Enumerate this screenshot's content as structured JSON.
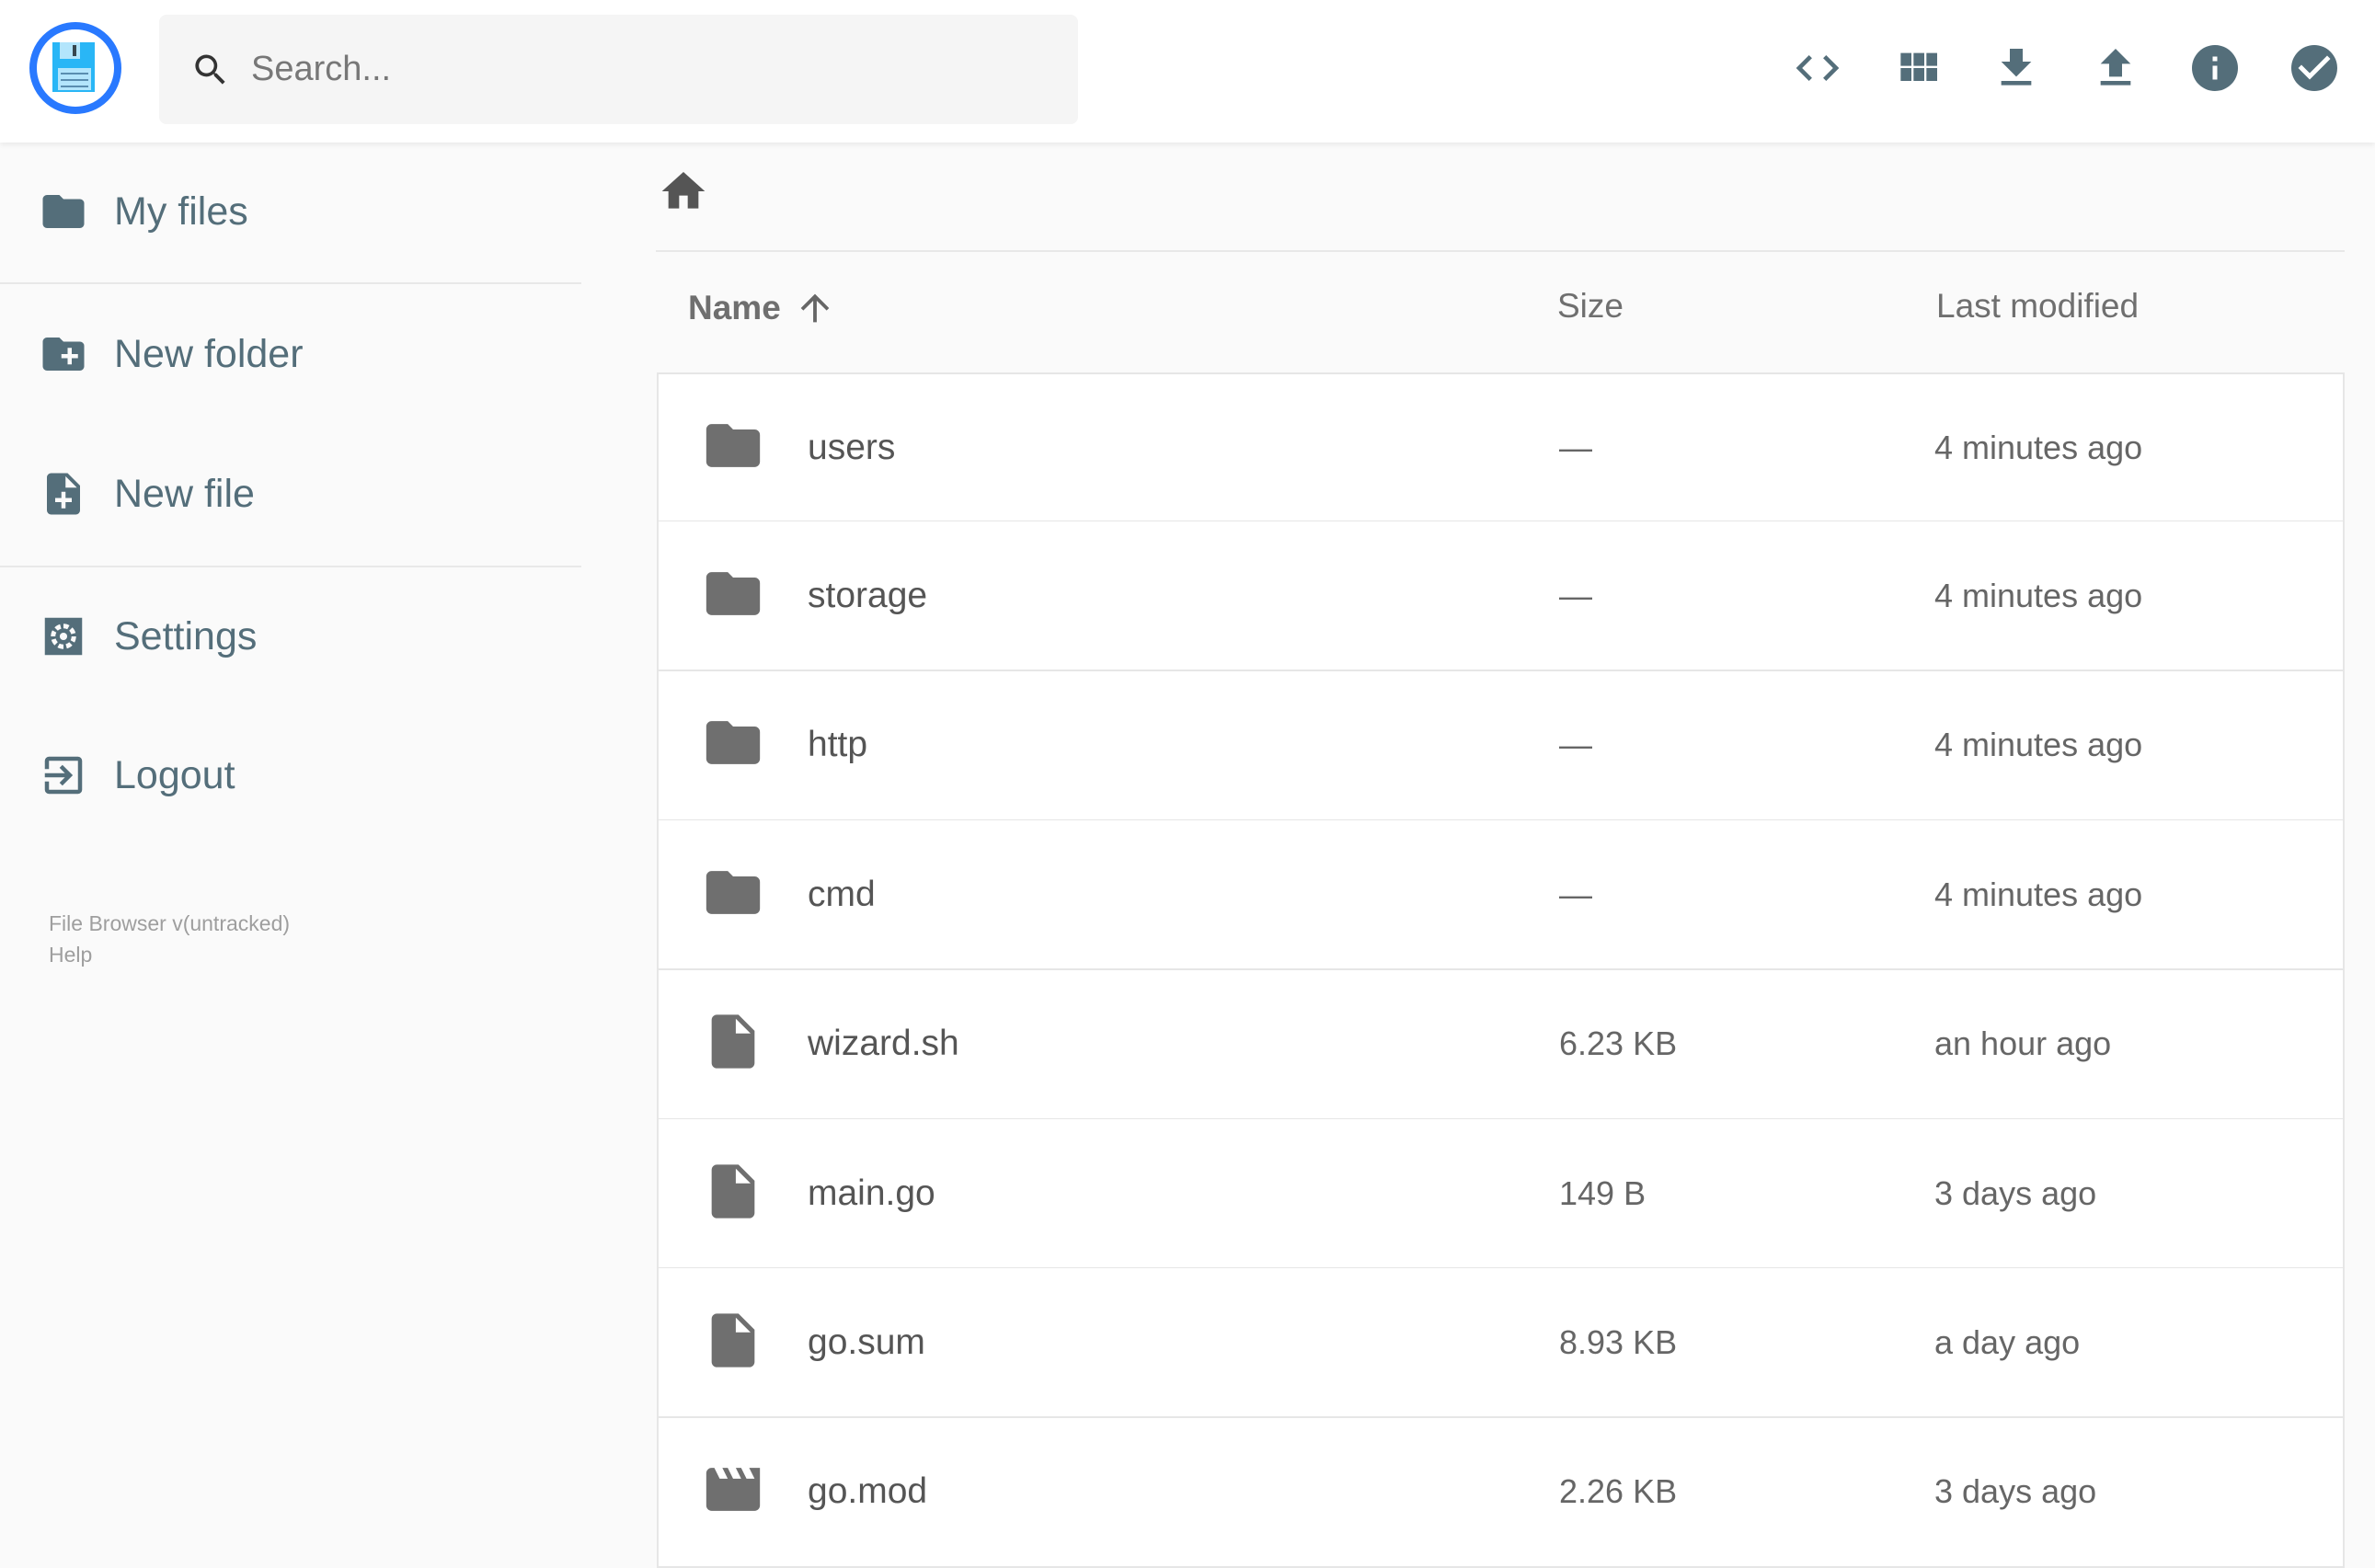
{
  "header": {
    "search_placeholder": "Search...",
    "actions": [
      "code-view-icon",
      "grid-view-icon",
      "download-icon",
      "upload-icon",
      "info-icon",
      "check-circle-icon"
    ],
    "icon_color": "#546e7a",
    "logo_ring_color": "#2979ff"
  },
  "sidebar": {
    "items": [
      {
        "label": "My files",
        "icon": "folder-icon"
      },
      {
        "label": "New folder",
        "icon": "create-new-folder-icon"
      },
      {
        "label": "New file",
        "icon": "note-add-icon"
      },
      {
        "label": "Settings",
        "icon": "settings-icon"
      },
      {
        "label": "Logout",
        "icon": "logout-icon"
      }
    ],
    "footer": {
      "version": "File Browser v(untracked)",
      "help": "Help"
    }
  },
  "listing": {
    "columns": {
      "name": "Name",
      "size": "Size",
      "modified": "Last modified"
    },
    "sort": "name-ascending",
    "rows": [
      {
        "name": "users",
        "type": "folder",
        "size": "—",
        "modified": "4 minutes ago"
      },
      {
        "name": "storage",
        "type": "folder",
        "size": "—",
        "modified": "4 minutes ago"
      },
      {
        "name": "http",
        "type": "folder",
        "size": "—",
        "modified": "4 minutes ago"
      },
      {
        "name": "cmd",
        "type": "folder",
        "size": "—",
        "modified": "4 minutes ago"
      },
      {
        "name": "wizard.sh",
        "type": "file",
        "size": "6.23 KB",
        "modified": "an hour ago"
      },
      {
        "name": "main.go",
        "type": "file",
        "size": "149 B",
        "modified": "3 days ago"
      },
      {
        "name": "go.sum",
        "type": "file",
        "size": "8.93 KB",
        "modified": "a day ago"
      },
      {
        "name": "go.mod",
        "type": "video",
        "size": "2.26 KB",
        "modified": "3 days ago"
      }
    ]
  }
}
